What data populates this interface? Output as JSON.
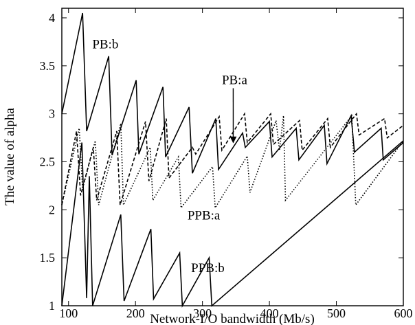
{
  "chart_data": {
    "type": "line",
    "title": "",
    "xlabel": "Network-I/O bandwidth (Mb/s)",
    "ylabel": "The value of alpha",
    "xlim": [
      90,
      600
    ],
    "ylim": [
      1,
      4.1
    ],
    "grid": false,
    "legend": "none",
    "x_ticks": [
      {
        "value": 100,
        "label": "100"
      },
      {
        "value": 200,
        "label": "200"
      },
      {
        "value": 300,
        "label": "300"
      },
      {
        "value": 400,
        "label": "400"
      },
      {
        "value": 500,
        "label": "500"
      },
      {
        "value": 600,
        "label": "600"
      }
    ],
    "y_ticks": [
      {
        "value": 1,
        "label": "1"
      },
      {
        "value": 1.5,
        "label": "1.5"
      },
      {
        "value": 2,
        "label": "2"
      },
      {
        "value": 2.5,
        "label": "2.5"
      },
      {
        "value": 3,
        "label": "3"
      },
      {
        "value": 3.5,
        "label": "3.5"
      },
      {
        "value": 4,
        "label": "4"
      }
    ],
    "series": [
      {
        "name": "PB:b",
        "style": "solid",
        "color": "#000000",
        "points": [
          [
            90,
            3.0
          ],
          [
            121,
            4.05
          ],
          [
            127,
            2.82
          ],
          [
            160,
            3.6
          ],
          [
            165,
            2.57
          ],
          [
            201,
            3.35
          ],
          [
            205,
            2.58
          ],
          [
            241,
            3.28
          ],
          [
            245,
            2.55
          ],
          [
            280,
            3.07
          ],
          [
            285,
            2.38
          ],
          [
            320,
            2.95
          ],
          [
            324,
            2.42
          ],
          [
            360,
            2.8
          ],
          [
            364,
            2.65
          ],
          [
            400,
            2.92
          ],
          [
            404,
            2.55
          ],
          [
            440,
            2.85
          ],
          [
            444,
            2.52
          ],
          [
            482,
            2.88
          ],
          [
            486,
            2.48
          ],
          [
            522,
            2.98
          ],
          [
            527,
            2.6
          ],
          [
            567,
            2.85
          ],
          [
            570,
            2.52
          ],
          [
            600,
            2.7
          ]
        ]
      },
      {
        "name": "PB:a",
        "style": "dashed",
        "color": "#000000",
        "points": [
          [
            90,
            2.05
          ],
          [
            112,
            2.82
          ],
          [
            118,
            2.15
          ],
          [
            137,
            2.65
          ],
          [
            142,
            2.1
          ],
          [
            172,
            2.82
          ],
          [
            177,
            2.05
          ],
          [
            215,
            2.92
          ],
          [
            220,
            2.3
          ],
          [
            246,
            2.95
          ],
          [
            250,
            2.33
          ],
          [
            285,
            2.65
          ],
          [
            290,
            2.58
          ],
          [
            325,
            2.97
          ],
          [
            329,
            2.62
          ],
          [
            363,
            3.0
          ],
          [
            367,
            2.7
          ],
          [
            402,
            3.0
          ],
          [
            406,
            2.68
          ],
          [
            445,
            2.93
          ],
          [
            449,
            2.62
          ],
          [
            487,
            2.95
          ],
          [
            491,
            2.65
          ],
          [
            530,
            3.0
          ],
          [
            534,
            2.78
          ],
          [
            572,
            2.95
          ],
          [
            576,
            2.75
          ],
          [
            600,
            2.88
          ]
        ]
      },
      {
        "name": "PPB:a",
        "style": "dotted",
        "color": "#000000",
        "points": [
          [
            90,
            2.05
          ],
          [
            116,
            2.85
          ],
          [
            121,
            2.22
          ],
          [
            140,
            2.72
          ],
          [
            145,
            2.05
          ],
          [
            178,
            2.9
          ],
          [
            182,
            2.05
          ],
          [
            222,
            2.65
          ],
          [
            226,
            2.1
          ],
          [
            264,
            2.55
          ],
          [
            268,
            2.02
          ],
          [
            315,
            2.45
          ],
          [
            319,
            2.02
          ],
          [
            367,
            2.56
          ],
          [
            371,
            2.18
          ],
          [
            410,
            2.93
          ],
          [
            415,
            2.62
          ],
          [
            421,
            2.98
          ],
          [
            424,
            2.1
          ],
          [
            523,
            2.98
          ],
          [
            529,
            2.05
          ],
          [
            600,
            2.72
          ]
        ]
      },
      {
        "name": "PPB:b",
        "style": "solid",
        "color": "#000000",
        "points": [
          [
            90,
            1.0
          ],
          [
            120,
            2.7
          ],
          [
            127,
            1.08
          ],
          [
            131,
            2.35
          ],
          [
            136,
            1.0
          ],
          [
            178,
            1.95
          ],
          [
            183,
            1.05
          ],
          [
            223,
            1.8
          ],
          [
            227,
            1.07
          ],
          [
            266,
            1.55
          ],
          [
            270,
            1.0
          ],
          [
            310,
            1.5
          ],
          [
            314,
            1.0
          ],
          [
            600,
            2.72
          ]
        ]
      }
    ],
    "annotations": [
      {
        "text": "PB:b",
        "x": 155,
        "y": 3.68
      },
      {
        "text": "PB:a",
        "x": 348,
        "y": 3.31,
        "arrow_to": [
          346,
          2.7
        ]
      },
      {
        "text": "PPB:a",
        "x": 302,
        "y": 1.9
      },
      {
        "text": "PPB:b",
        "x": 308,
        "y": 1.35
      }
    ]
  }
}
